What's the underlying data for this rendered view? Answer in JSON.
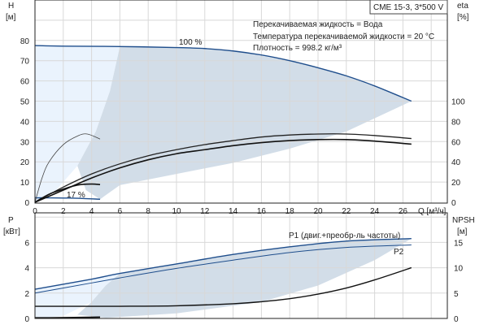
{
  "chart_data": [
    {
      "type": "line",
      "title": "CME 15-3, 3*500 V",
      "info": [
        "Перекачиваемая жидкость = Вода",
        "Температура перекачиваемой жидкости = 20 °C",
        "Плотность = 998.2 кг/м³"
      ],
      "xlabel": "Q [м³/ч]",
      "ylabel": "H",
      "ylabel_unit": "[м]",
      "y2label": "eta",
      "y2label_unit": "[%]",
      "xlim": [
        0,
        28
      ],
      "ylim": [
        0,
        90
      ],
      "y2lim": [
        0,
        180
      ],
      "xticks": [
        "0",
        "2",
        "4",
        "6",
        "8",
        "10",
        "12",
        "14",
        "16",
        "18",
        "20",
        "22",
        "24",
        "26"
      ],
      "yticks": [
        "0",
        "10",
        "20",
        "30",
        "40",
        "50",
        "60",
        "70",
        "80"
      ],
      "y2ticks": [
        "0",
        "20",
        "40",
        "60",
        "80",
        "100"
      ],
      "grid": true,
      "series": [
        {
          "name": "H 100 %",
          "label": "100 %",
          "axis": "H",
          "color": "#1f4e8c",
          "x": [
            0,
            2,
            6,
            10,
            12,
            14,
            16,
            18,
            20,
            22,
            24,
            26.6
          ],
          "y": [
            77.5,
            77.2,
            77,
            76.5,
            76,
            74.8,
            72.8,
            70,
            66.5,
            62.5,
            57.5,
            50
          ]
        },
        {
          "name": "H 17 %",
          "label": "17 %",
          "axis": "H",
          "color": "#1f4e8c",
          "x": [
            0,
            1,
            2,
            3,
            4.6
          ],
          "y": [
            2.2,
            2.2,
            2.1,
            2,
            1.5
          ]
        },
        {
          "name": "eta 1",
          "axis": "eta",
          "color": "#222222",
          "x": [
            0,
            2,
            4,
            6,
            8,
            10,
            12,
            14,
            16,
            18,
            20,
            22,
            24,
            26.6
          ],
          "y": [
            0,
            15,
            28,
            38,
            46,
            52,
            57,
            61,
            64.5,
            66.5,
            67.5,
            67.5,
            66,
            63
          ]
        },
        {
          "name": "eta 2",
          "axis": "eta",
          "color": "#111111",
          "x": [
            0,
            2,
            4,
            6,
            8,
            10,
            12,
            14,
            16,
            18,
            20,
            22,
            24,
            26.6
          ],
          "y": [
            0,
            12,
            24,
            34,
            42,
            48,
            52,
            56,
            59,
            61,
            62,
            62,
            60.5,
            57.5
          ]
        },
        {
          "name": "eta 17 % thin",
          "axis": "eta",
          "color": "#444444",
          "x": [
            0,
            0.5,
            1,
            2,
            3,
            3.7,
            4.6
          ],
          "y": [
            0,
            24,
            40,
            57,
            65.5,
            67.5,
            62.5
          ]
        },
        {
          "name": "eta 17 %",
          "axis": "eta",
          "color": "#111111",
          "x": [
            0,
            1,
            2,
            3,
            4,
            4.6
          ],
          "y": [
            0,
            8,
            13,
            17,
            18,
            17.5
          ]
        }
      ]
    },
    {
      "type": "line",
      "ylabel": "P",
      "ylabel_unit": "[кВт]",
      "y2label": "NPSH",
      "y2label_unit": "[м]",
      "xlim": [
        0,
        28
      ],
      "ylim": [
        0,
        8.3
      ],
      "y2lim": [
        0,
        20.75
      ],
      "yticks": [
        "0",
        "2",
        "4",
        "6"
      ],
      "y2ticks": [
        "0",
        "5",
        "10",
        "15"
      ],
      "grid": true,
      "series": [
        {
          "name": "P1",
          "label": "P1 (двиг.+преобр-ль частоты)",
          "axis": "P",
          "color": "#1f4e8c",
          "x": [
            0,
            4,
            6,
            10,
            14,
            18,
            22,
            26.6
          ],
          "y": [
            2.3,
            3.1,
            3.55,
            4.3,
            5.05,
            5.65,
            6.1,
            6.3
          ]
        },
        {
          "name": "P2",
          "label": "P2",
          "axis": "P",
          "color": "#1f4e8c",
          "x": [
            0,
            4,
            6,
            10,
            14,
            18,
            22,
            26.6
          ],
          "y": [
            2.0,
            2.8,
            3.2,
            3.95,
            4.6,
            5.2,
            5.6,
            5.8
          ]
        },
        {
          "name": "NPSH",
          "axis": "NPSH",
          "color": "#111111",
          "x": [
            0,
            3.5,
            6,
            10,
            14,
            16,
            18,
            20,
            22,
            24,
            26.6
          ],
          "y": [
            2.4,
            2.4,
            2.4,
            2.5,
            2.9,
            3.3,
            3.9,
            4.8,
            6,
            7.6,
            10
          ]
        },
        {
          "name": "P 17 %",
          "axis": "P",
          "color": "#111111",
          "x": [
            0,
            1,
            4.6
          ],
          "y": [
            0.05,
            0.05,
            0.1
          ]
        }
      ]
    }
  ]
}
